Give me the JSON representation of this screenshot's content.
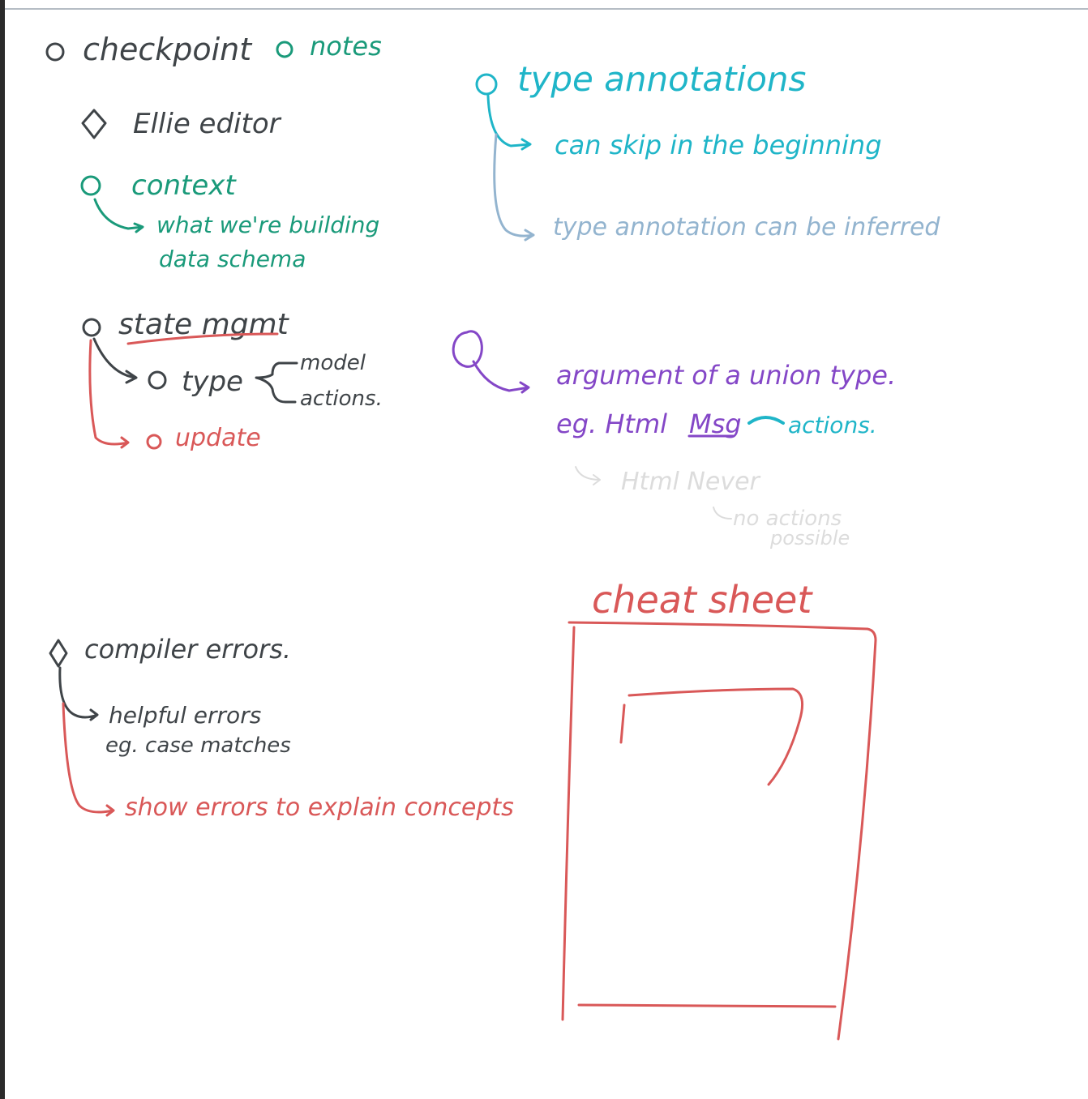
{
  "colors": {
    "dark": "#3f4448",
    "green": "#1a9a7a",
    "cyan": "#1fb5c8",
    "blue": "#93b4cf",
    "purple": "#8447c7",
    "red": "#d95858",
    "faint": "#dcdcdc"
  },
  "notes": {
    "checkpoint": "checkpoint",
    "notes_label": "notes",
    "ellie_editor": "Ellie editor",
    "context": "context",
    "what_building": "what we're building",
    "data_schema": "data schema",
    "state_mgmt": "state mgmt",
    "type": "type",
    "model": "model",
    "actions": "actions.",
    "update": "update",
    "compiler_errors": "compiler errors.",
    "helpful_errors": "helpful errors",
    "eg_case_matches": "eg. case matches",
    "show_errors": "show errors to explain concepts",
    "type_annotations": "type annotations",
    "can_skip": "can skip in the beginning",
    "type_inferred": "type annotation can be inferred",
    "argument_union": "argument of a union type.",
    "eg_html": "eg. Html",
    "msg": "Msg",
    "actions_2": "actions.",
    "html_never": "Html Never",
    "no_actions": "no actions",
    "possible": "possible",
    "cheat_sheet": "cheat sheet"
  }
}
